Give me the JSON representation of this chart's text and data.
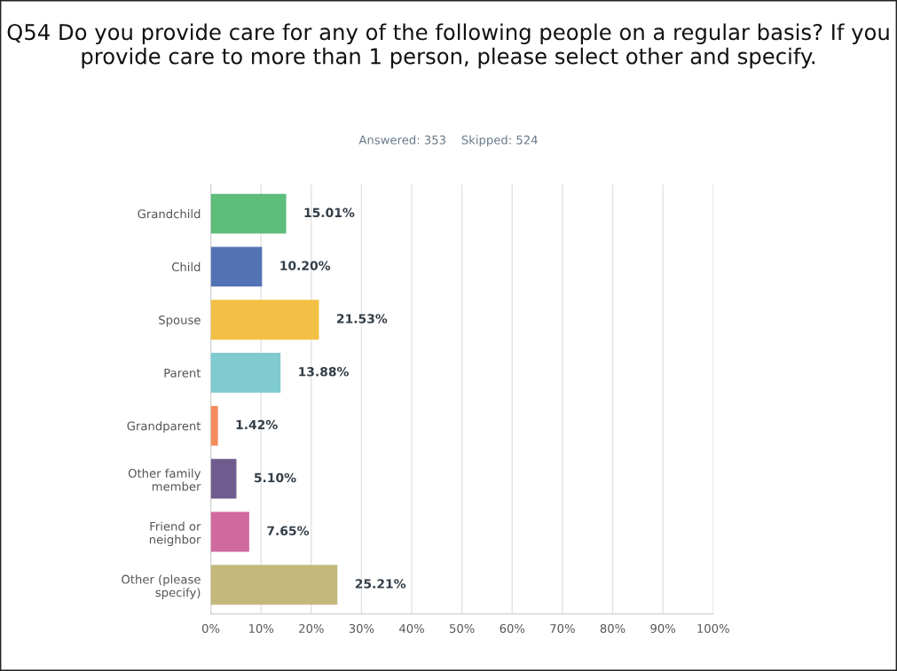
{
  "chart_data": {
    "type": "bar",
    "orientation": "horizontal",
    "title": "Q54 Do you provide care for any of the following people on a regular basis? If you provide care to more than 1 person, please select other and specify.",
    "subtitle": "Answered: 353    Skipped: 524",
    "categories": [
      "Grandchild",
      "Child",
      "Spouse",
      "Parent",
      "Grandparent",
      "Other family\nmember",
      "Friend or\nneighbor",
      "Other (please\nspecify)"
    ],
    "values": [
      15.01,
      10.2,
      21.53,
      13.88,
      1.42,
      5.1,
      7.65,
      25.21
    ],
    "value_labels": [
      "15.01%",
      "10.20%",
      "21.53%",
      "13.88%",
      "1.42%",
      "5.10%",
      "7.65%",
      "25.21%"
    ],
    "colors": [
      "#5dbd7a",
      "#5272b4",
      "#f2c045",
      "#7fcbcf",
      "#f58b5c",
      "#6f5b8d",
      "#d0699d",
      "#c5b87c"
    ],
    "xlim": [
      0,
      100
    ],
    "xticks": [
      {
        "value": 0,
        "label": "0%"
      },
      {
        "value": 10,
        "label": "10%"
      },
      {
        "value": 20,
        "label": "20%"
      },
      {
        "value": 30,
        "label": "30%"
      },
      {
        "value": 40,
        "label": "40%"
      },
      {
        "value": 50,
        "label": "50%"
      },
      {
        "value": 60,
        "label": "60%"
      },
      {
        "value": 70,
        "label": "70%"
      },
      {
        "value": 80,
        "label": "80%"
      },
      {
        "value": 90,
        "label": "90%"
      },
      {
        "value": 100,
        "label": "100%"
      }
    ],
    "grid": "x"
  }
}
